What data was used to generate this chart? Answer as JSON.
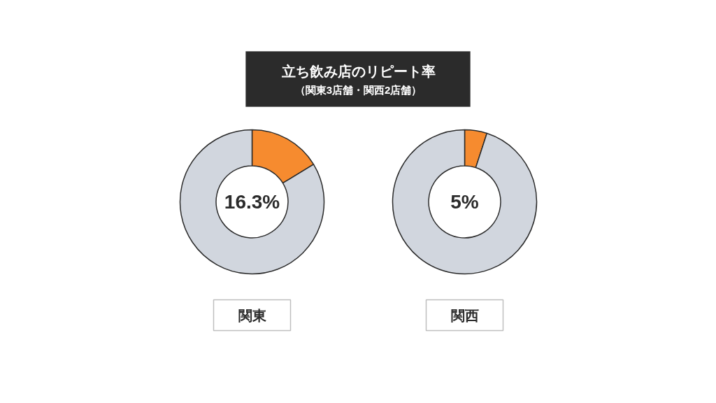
{
  "chart_data": [
    {
      "type": "donut",
      "title": "立ち飲み店のリピート率",
      "subtitle": "（関東3店舗・関西2店舗）",
      "categories": [
        null,
        null
      ],
      "values": [
        16.3,
        83.7
      ],
      "colors": [
        "#f68b2f",
        "#d1d6de"
      ],
      "value_labels": [
        "16.3%",
        null
      ],
      "xlabel": "関東"
    },
    {
      "type": "donut",
      "categories": [
        null,
        null
      ],
      "values": [
        5,
        95
      ],
      "colors": [
        "#f68b2f",
        "#d1d6de"
      ],
      "value_labels": [
        "5%",
        null
      ],
      "xlabel": "関西"
    }
  ]
}
